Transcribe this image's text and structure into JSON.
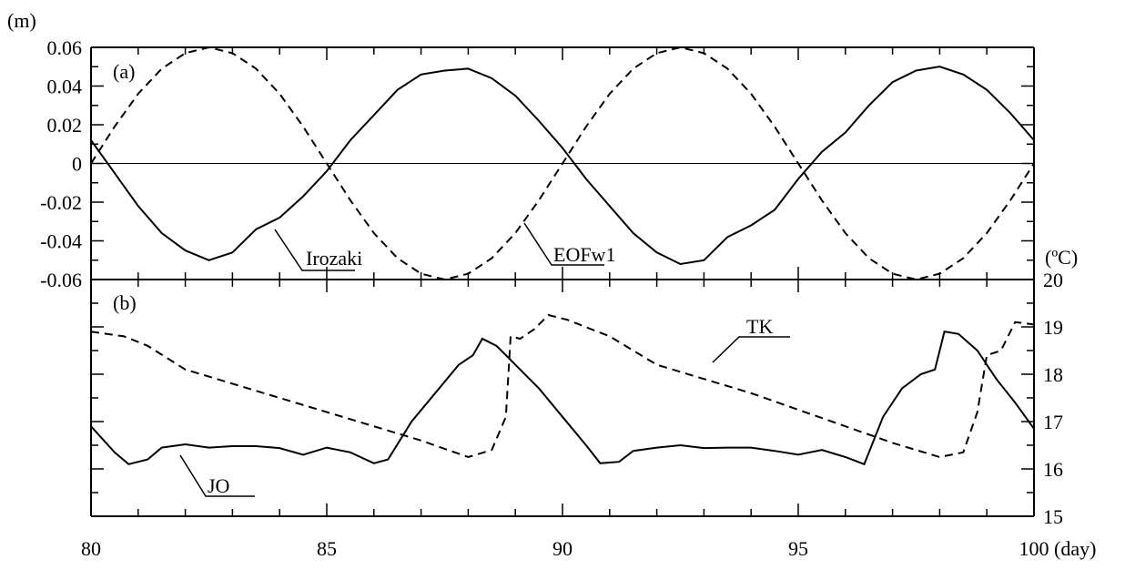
{
  "chart_data": [
    {
      "type": "line",
      "panel_label": "(a)",
      "ylabel": "(m)",
      "xlabel": "(day)",
      "xlim": [
        80,
        100
      ],
      "ylim": [
        -0.06,
        0.06
      ],
      "yticks": [
        0.06,
        0.04,
        0.02,
        0,
        -0.02,
        -0.04,
        -0.06
      ],
      "ytick_labels": [
        "0.06",
        "0.04",
        "0.02",
        "0",
        "-0.02",
        "-0.04",
        "-0.06"
      ],
      "grid": false,
      "series": [
        {
          "name": "Irozaki",
          "style": "solid",
          "x": [
            80,
            80.5,
            81,
            81.5,
            82,
            82.5,
            83,
            83.5,
            84,
            84.5,
            85,
            85.5,
            86,
            86.5,
            87,
            87.5,
            88,
            88.5,
            89,
            89.5,
            90,
            90.5,
            91,
            91.5,
            92,
            92.5,
            93,
            93.5,
            94,
            94.5,
            95,
            95.5,
            96,
            96.5,
            97,
            97.5,
            98,
            98.5,
            99,
            99.5,
            100
          ],
          "y": [
            0.012,
            -0.005,
            -0.022,
            -0.036,
            -0.045,
            -0.05,
            -0.046,
            -0.034,
            -0.028,
            -0.017,
            -0.004,
            0.012,
            0.025,
            0.038,
            0.046,
            0.048,
            0.049,
            0.044,
            0.035,
            0.022,
            0.008,
            -0.008,
            -0.022,
            -0.036,
            -0.046,
            -0.052,
            -0.05,
            -0.038,
            -0.032,
            -0.024,
            -0.008,
            0.006,
            0.016,
            0.03,
            0.042,
            0.048,
            0.05,
            0.046,
            0.038,
            0.026,
            0.012
          ]
        },
        {
          "name": "EOFw1",
          "style": "dashed",
          "x": [
            80,
            80.5,
            81,
            81.5,
            82,
            82.5,
            83,
            83.5,
            84,
            84.5,
            85,
            85.5,
            86,
            86.5,
            87,
            87.5,
            88,
            88.5,
            89,
            89.5,
            90,
            90.5,
            91,
            91.5,
            92,
            92.5,
            93,
            93.5,
            94,
            94.5,
            95,
            95.5,
            96,
            96.5,
            97,
            97.5,
            98,
            98.5,
            99,
            99.5,
            100
          ],
          "y": [
            0.0,
            0.019,
            0.036,
            0.049,
            0.057,
            0.06,
            0.057,
            0.049,
            0.036,
            0.019,
            0.0,
            -0.019,
            -0.036,
            -0.049,
            -0.057,
            -0.06,
            -0.057,
            -0.049,
            -0.036,
            -0.019,
            0.0,
            0.019,
            0.036,
            0.049,
            0.057,
            0.06,
            0.057,
            0.049,
            0.036,
            0.019,
            0.0,
            -0.019,
            -0.036,
            -0.049,
            -0.057,
            -0.06,
            -0.057,
            -0.049,
            -0.036,
            -0.019,
            0.0
          ]
        }
      ]
    },
    {
      "type": "line",
      "panel_label": "(b)",
      "ylabel": "(ºC)",
      "xlabel": "(day)",
      "xlim": [
        80,
        100
      ],
      "xticks": [
        80,
        85,
        90,
        95,
        100
      ],
      "xtick_labels": [
        "80",
        "85",
        "90",
        "95",
        "100"
      ],
      "ylim": [
        15,
        20
      ],
      "yticks": [
        20,
        19,
        18,
        17,
        16,
        15
      ],
      "ytick_labels": [
        "20",
        "19",
        "18",
        "17",
        "16",
        "15"
      ],
      "grid": false,
      "series": [
        {
          "name": "JO",
          "style": "solid",
          "x": [
            80,
            80.5,
            80.8,
            81.2,
            81.5,
            82,
            82.5,
            83,
            83.5,
            84,
            84.5,
            85,
            85.5,
            86,
            86.3,
            86.8,
            87.3,
            87.8,
            88.1,
            88.3,
            88.6,
            89,
            89.5,
            90,
            90.5,
            90.8,
            91.2,
            91.5,
            92,
            92.5,
            93,
            93.5,
            94,
            94.5,
            95,
            95.5,
            96,
            96.4,
            96.8,
            97.2,
            97.6,
            97.9,
            98.1,
            98.4,
            98.8,
            99.2,
            99.6,
            100
          ],
          "y": [
            16.9,
            16.35,
            16.1,
            16.2,
            16.45,
            16.52,
            16.45,
            16.48,
            16.48,
            16.44,
            16.3,
            16.45,
            16.35,
            16.12,
            16.2,
            17.0,
            17.6,
            18.2,
            18.4,
            18.75,
            18.6,
            18.2,
            17.7,
            17.1,
            16.5,
            16.12,
            16.15,
            16.38,
            16.45,
            16.5,
            16.44,
            16.45,
            16.45,
            16.38,
            16.3,
            16.4,
            16.25,
            16.1,
            17.1,
            17.7,
            18.0,
            18.1,
            18.9,
            18.85,
            18.5,
            17.9,
            17.4,
            16.85
          ]
        },
        {
          "name": "TK",
          "style": "dashed",
          "x": [
            80,
            80.7,
            81.2,
            82,
            83,
            84,
            85,
            86,
            87,
            88,
            88.5,
            88.8,
            88.9,
            89.1,
            89.4,
            89.7,
            90.1,
            91,
            92,
            93,
            94,
            95,
            96,
            97,
            98,
            98.5,
            98.8,
            99.0,
            99.3,
            99.6,
            100
          ],
          "y": [
            18.9,
            18.8,
            18.6,
            18.1,
            17.8,
            17.5,
            17.2,
            16.9,
            16.6,
            16.25,
            16.4,
            17.1,
            18.8,
            18.75,
            18.95,
            19.25,
            19.15,
            18.8,
            18.2,
            17.9,
            17.6,
            17.25,
            16.9,
            16.55,
            16.25,
            16.35,
            17.2,
            18.4,
            18.5,
            19.1,
            19.05
          ]
        }
      ]
    }
  ]
}
